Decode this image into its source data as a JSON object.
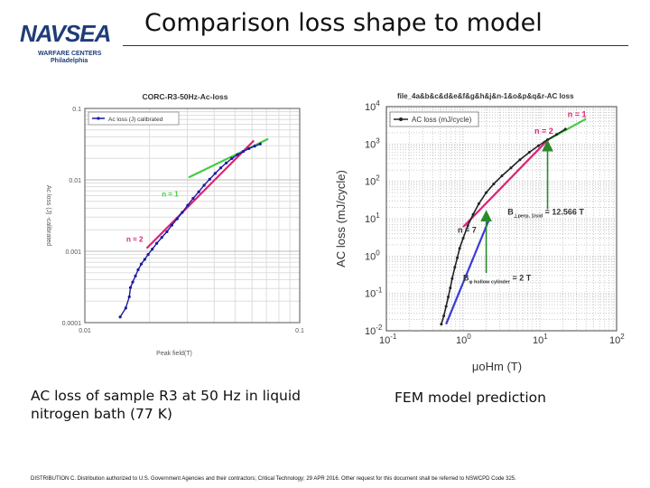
{
  "slide": {
    "title": "Comparison loss shape to model",
    "logo": {
      "name": "NAVSEA",
      "line1": "WARFARE CENTERS",
      "line2": "Philadelphia"
    },
    "caption_left": "AC loss of sample R3 at 50 Hz in liquid nitrogen bath (77 K)",
    "caption_right": "FEM model prediction",
    "footer": "DISTRIBUTION C. Distribution authorized to U.S. Government Agencies and their contractors; Critical Technology; 29 APR 2016. Other request for this document shall be referred to NSWCPD Code 325."
  },
  "chart_data": [
    {
      "type": "line",
      "title": "CORC-R3-50Hz-Ac-loss",
      "xlabel": "Peak field(T)",
      "ylabel": "Ac loss (J) -calibrated",
      "xscale": "log",
      "yscale": "log",
      "xlim": [
        0.01,
        0.1
      ],
      "ylim": [
        0.0001,
        0.1
      ],
      "x_ticks": [
        "0.01",
        "0.1"
      ],
      "y_ticks": [
        "0.1",
        "0.01",
        "0.001",
        "0.0001"
      ],
      "grid": true,
      "legend": "top-left",
      "series": [
        {
          "name": "Ac loss (J) calibrated",
          "color": "#1a1a9e",
          "x": [
            0.0146,
            0.0155,
            0.0161,
            0.0163,
            0.0167,
            0.0172,
            0.0177,
            0.0183,
            0.019,
            0.0197,
            0.0206,
            0.0216,
            0.0228,
            0.0241,
            0.0254,
            0.0269,
            0.0284,
            0.0301,
            0.0319,
            0.0339,
            0.0359,
            0.0381,
            0.0404,
            0.0429,
            0.0455,
            0.0483,
            0.0513,
            0.0546,
            0.058,
            0.0617,
            0.0655
          ],
          "y": [
            0.00012,
            0.00016,
            0.00023,
            0.00031,
            0.00037,
            0.00045,
            0.00055,
            0.00066,
            0.00077,
            0.0009,
            0.00107,
            0.00129,
            0.00156,
            0.00188,
            0.00232,
            0.00285,
            0.0035,
            0.0044,
            0.0055,
            0.0068,
            0.0084,
            0.0102,
            0.0123,
            0.0147,
            0.0172,
            0.0199,
            0.0225,
            0.025,
            0.0274,
            0.0296,
            0.0318
          ]
        },
        {
          "name": "n = 1",
          "color": "#44cc44",
          "x": [
            0.0304,
            0.0714
          ],
          "y": [
            0.0108,
            0.0375
          ]
        },
        {
          "name": "n = 2",
          "color": "#dd2277",
          "x": [
            0.0194,
            0.0612
          ],
          "y": [
            0.0011,
            0.0355
          ]
        }
      ],
      "annotations": [
        "n = 1",
        "n = 2"
      ]
    },
    {
      "type": "line",
      "title": "file_4a&b&c&d&e&f&g&h&j&n-1&o&p&q&r-AC loss",
      "xlabel": "μoHm (T)",
      "ylabel": "AC loss (mJ/cycle)",
      "xscale": "log",
      "yscale": "log",
      "xlim": [
        0.1,
        100
      ],
      "ylim": [
        0.01,
        10000
      ],
      "x_ticks": [
        "10-1",
        "100",
        "101",
        "102"
      ],
      "y_ticks": [
        "104",
        "103",
        "102",
        "101",
        "100",
        "10-1",
        "10-2"
      ],
      "grid": true,
      "legend": "top-left",
      "series": [
        {
          "name": "AC loss (mJ/cycle)",
          "color": "#222222",
          "x": [
            0.52,
            0.56,
            0.6,
            0.64,
            0.68,
            0.72,
            0.78,
            0.84,
            0.9,
            1.0,
            1.15,
            1.35,
            1.6,
            2.0,
            2.5,
            3.2,
            4.2,
            5.5,
            7.3,
            9.6,
            12.6,
            16.5,
            21.5
          ],
          "y": [
            0.015,
            0.025,
            0.045,
            0.08,
            0.14,
            0.25,
            0.5,
            0.9,
            1.6,
            3.0,
            6.5,
            13,
            25,
            50,
            85,
            140,
            230,
            380,
            600,
            900,
            1300,
            1800,
            2500
          ]
        },
        {
          "name": "n = 1",
          "color": "#44cc44",
          "x": [
            11,
            40
          ],
          "y": [
            1100,
            4700
          ]
        },
        {
          "name": "n = 2",
          "color": "#dd2277",
          "x": [
            1.0,
            13.0
          ],
          "y": [
            6.0,
            1350
          ]
        },
        {
          "name": "n = 7",
          "color": "#3a3ad8",
          "x": [
            0.6,
            2.2
          ],
          "y": [
            0.015,
            10
          ]
        }
      ],
      "annotations": [
        {
          "text": "n = 1"
        },
        {
          "text": "n = 2"
        },
        {
          "text": "n = 7"
        },
        {
          "text": "B",
          "sub": "⊥perp, 1/sid",
          "value": "= 12.566 T"
        },
        {
          "text": "B",
          "sub": "φ hollow cylinder",
          "value": "= 2 T"
        }
      ]
    }
  ]
}
